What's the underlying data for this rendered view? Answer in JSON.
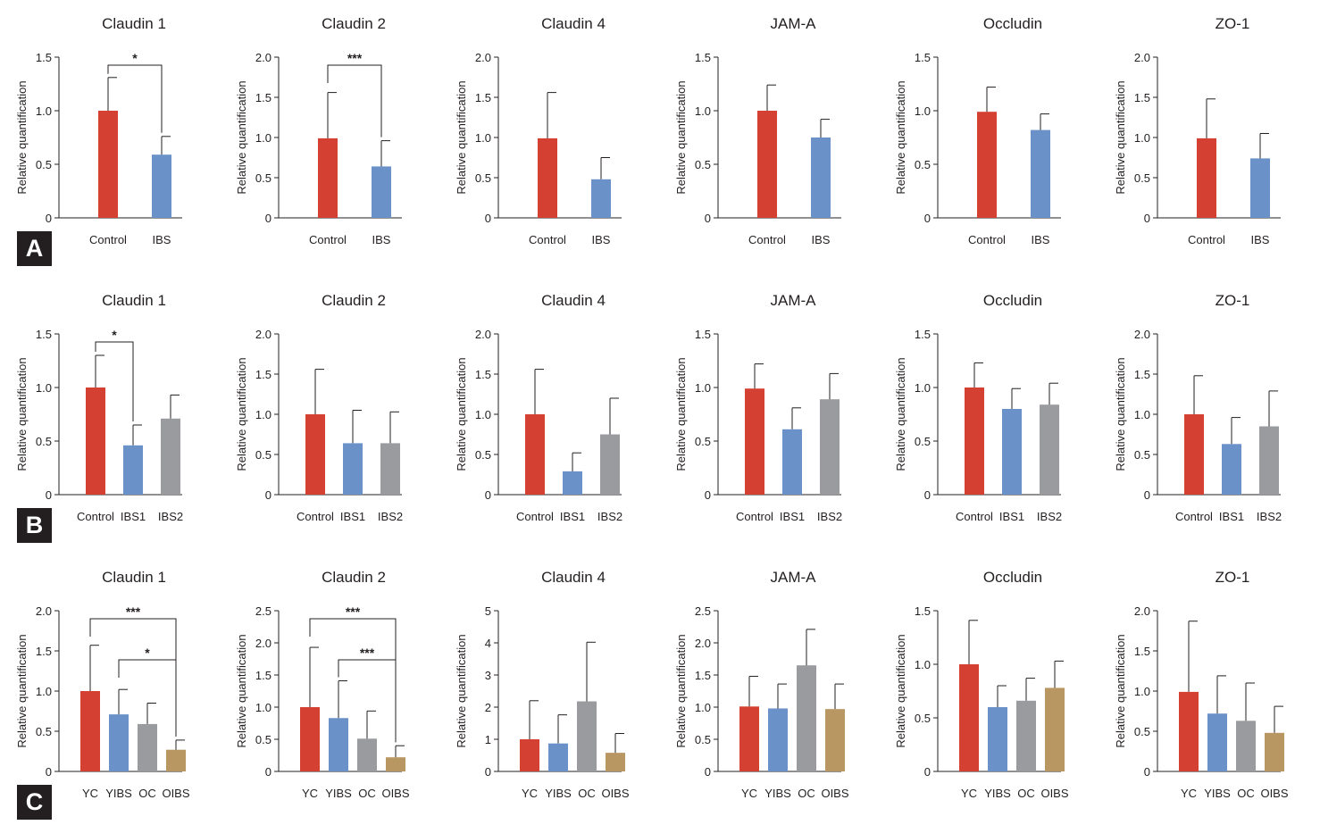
{
  "colors": {
    "red": "#d44031",
    "blue": "#6a92c8",
    "gray": "#9a9b9f",
    "tan": "#b99763",
    "axis": "#231f20"
  },
  "y_axis_label": "Relative quantification",
  "panel_labels": [
    "A",
    "B",
    "C"
  ],
  "chart_data": [
    {
      "type": "bar",
      "row": 0,
      "col": 0,
      "title": "Claudin 1",
      "categories": [
        "Control",
        "IBS"
      ],
      "values": [
        1.0,
        0.59
      ],
      "errors": [
        0.31,
        0.17
      ],
      "ylim": [
        0,
        1.5
      ],
      "yticks": [
        "0",
        "0.5",
        "1.0",
        "1.5"
      ],
      "significance": [
        {
          "from": 0,
          "to": 1,
          "label": "*"
        }
      ]
    },
    {
      "type": "bar",
      "row": 0,
      "col": 1,
      "title": "Claudin 2",
      "categories": [
        "Control",
        "IBS"
      ],
      "values": [
        0.99,
        0.64
      ],
      "errors": [
        0.57,
        0.32
      ],
      "ylim": [
        0,
        2.0
      ],
      "yticks": [
        "0",
        "0.5",
        "1.0",
        "1.5",
        "2.0"
      ],
      "significance": [
        {
          "from": 0,
          "to": 1,
          "label": "***"
        }
      ]
    },
    {
      "type": "bar",
      "row": 0,
      "col": 2,
      "title": "Claudin 4",
      "categories": [
        "Control",
        "IBS"
      ],
      "values": [
        0.99,
        0.48
      ],
      "errors": [
        0.57,
        0.27
      ],
      "ylim": [
        0,
        2.0
      ],
      "yticks": [
        "0",
        "0.5",
        "1.0",
        "1.5",
        "2.0"
      ],
      "significance": []
    },
    {
      "type": "bar",
      "row": 0,
      "col": 3,
      "title": "JAM-A",
      "categories": [
        "Control",
        "IBS"
      ],
      "values": [
        1.0,
        0.75
      ],
      "errors": [
        0.24,
        0.17
      ],
      "ylim": [
        0,
        1.5
      ],
      "yticks": [
        "0",
        "0.5",
        "1.0",
        "1.5"
      ],
      "significance": []
    },
    {
      "type": "bar",
      "row": 0,
      "col": 4,
      "title": "Occludin",
      "categories": [
        "Control",
        "IBS"
      ],
      "values": [
        0.99,
        0.82
      ],
      "errors": [
        0.23,
        0.15
      ],
      "ylim": [
        0,
        1.5
      ],
      "yticks": [
        "0",
        "0.5",
        "1.0",
        "1.5"
      ],
      "significance": []
    },
    {
      "type": "bar",
      "row": 0,
      "col": 5,
      "title": "ZO-1",
      "categories": [
        "Control",
        "IBS"
      ],
      "values": [
        0.99,
        0.74
      ],
      "errors": [
        0.49,
        0.31
      ],
      "ylim": [
        0,
        2.0
      ],
      "yticks": [
        "0",
        "0.5",
        "1.0",
        "1.5",
        "2.0"
      ],
      "significance": []
    },
    {
      "type": "bar",
      "row": 1,
      "col": 0,
      "title": "Claudin 1",
      "categories": [
        "Control",
        "IBS1",
        "IBS2"
      ],
      "values": [
        1.0,
        0.46,
        0.71
      ],
      "errors": [
        0.3,
        0.19,
        0.22
      ],
      "ylim": [
        0,
        1.5
      ],
      "yticks": [
        "0",
        "0.5",
        "1.0",
        "1.5"
      ],
      "significance": [
        {
          "from": 0,
          "to": 1,
          "label": "*"
        }
      ]
    },
    {
      "type": "bar",
      "row": 1,
      "col": 1,
      "title": "Claudin 2",
      "categories": [
        "Control",
        "IBS1",
        "IBS2"
      ],
      "values": [
        1.0,
        0.64,
        0.64
      ],
      "errors": [
        0.56,
        0.41,
        0.39
      ],
      "ylim": [
        0,
        2.0
      ],
      "yticks": [
        "0",
        "0.5",
        "1.0",
        "1.5",
        "2.0"
      ],
      "significance": []
    },
    {
      "type": "bar",
      "row": 1,
      "col": 2,
      "title": "Claudin 4",
      "categories": [
        "Control",
        "IBS1",
        "IBS2"
      ],
      "values": [
        1.0,
        0.29,
        0.75
      ],
      "errors": [
        0.56,
        0.23,
        0.45
      ],
      "ylim": [
        0,
        2.0
      ],
      "yticks": [
        "0",
        "0.5",
        "1.0",
        "1.5",
        "2.0"
      ],
      "significance": []
    },
    {
      "type": "bar",
      "row": 1,
      "col": 3,
      "title": "JAM-A",
      "categories": [
        "Control",
        "IBS1",
        "IBS2"
      ],
      "values": [
        0.99,
        0.61,
        0.89
      ],
      "errors": [
        0.23,
        0.2,
        0.24
      ],
      "ylim": [
        0,
        1.5
      ],
      "yticks": [
        "0",
        "0.5",
        "1.0",
        "1.5"
      ],
      "significance": []
    },
    {
      "type": "bar",
      "row": 1,
      "col": 4,
      "title": "Occludin",
      "categories": [
        "Control",
        "IBS1",
        "IBS2"
      ],
      "values": [
        1.0,
        0.8,
        0.84
      ],
      "errors": [
        0.23,
        0.19,
        0.2
      ],
      "ylim": [
        0,
        1.5
      ],
      "yticks": [
        "0",
        "0.5",
        "1.0",
        "1.5"
      ],
      "significance": []
    },
    {
      "type": "bar",
      "row": 1,
      "col": 5,
      "title": "ZO-1",
      "categories": [
        "Control",
        "IBS1",
        "IBS2"
      ],
      "values": [
        1.0,
        0.63,
        0.85
      ],
      "errors": [
        0.48,
        0.33,
        0.44
      ],
      "ylim": [
        0,
        2.0
      ],
      "yticks": [
        "0",
        "0.5",
        "1.0",
        "1.5",
        "2.0"
      ],
      "significance": []
    },
    {
      "type": "bar",
      "row": 2,
      "col": 0,
      "title": "Claudin 1",
      "categories": [
        "YC",
        "YIBS",
        "OC",
        "OIBS"
      ],
      "values": [
        1.0,
        0.71,
        0.59,
        0.27
      ],
      "errors": [
        0.57,
        0.31,
        0.26,
        0.12
      ],
      "ylim": [
        0,
        2.0
      ],
      "yticks": [
        "0",
        "0.5",
        "1.0",
        "1.5",
        "2.0"
      ],
      "significance": [
        {
          "from": 0,
          "to": 3,
          "label": "***"
        },
        {
          "from": 1,
          "to": 3,
          "label": "*"
        }
      ]
    },
    {
      "type": "bar",
      "row": 2,
      "col": 1,
      "title": "Claudin 2",
      "categories": [
        "YC",
        "YIBS",
        "OC",
        "OIBS"
      ],
      "values": [
        1.0,
        0.83,
        0.51,
        0.22
      ],
      "errors": [
        0.93,
        0.58,
        0.43,
        0.18
      ],
      "ylim": [
        0,
        2.5
      ],
      "yticks": [
        "0",
        "0.5",
        "1.0",
        "1.5",
        "2.0",
        "2.5"
      ],
      "significance": [
        {
          "from": 0,
          "to": 3,
          "label": "***"
        },
        {
          "from": 1,
          "to": 3,
          "label": "***"
        }
      ]
    },
    {
      "type": "bar",
      "row": 2,
      "col": 2,
      "title": "Claudin 4",
      "categories": [
        "YC",
        "YIBS",
        "OC",
        "OIBS"
      ],
      "values": [
        1.0,
        0.87,
        2.18,
        0.58
      ],
      "errors": [
        1.2,
        0.89,
        1.84,
        0.6
      ],
      "ylim": [
        0,
        5
      ],
      "yticks": [
        "0",
        "1",
        "2",
        "3",
        "4",
        "5"
      ],
      "significance": []
    },
    {
      "type": "bar",
      "row": 2,
      "col": 3,
      "title": "JAM-A",
      "categories": [
        "YC",
        "YIBS",
        "OC",
        "OIBS"
      ],
      "values": [
        1.01,
        0.98,
        1.65,
        0.97
      ],
      "errors": [
        0.47,
        0.38,
        0.56,
        0.39
      ],
      "ylim": [
        0,
        2.5
      ],
      "yticks": [
        "0",
        "0.5",
        "1.0",
        "1.5",
        "2.0",
        "2.5"
      ],
      "significance": []
    },
    {
      "type": "bar",
      "row": 2,
      "col": 4,
      "title": "Occludin",
      "categories": [
        "YC",
        "YIBS",
        "OC",
        "OIBS"
      ],
      "values": [
        1.0,
        0.6,
        0.66,
        0.78
      ],
      "errors": [
        0.41,
        0.2,
        0.21,
        0.25
      ],
      "ylim": [
        0,
        1.5
      ],
      "yticks": [
        "0",
        "0.5",
        "1.0",
        "1.5"
      ],
      "significance": []
    },
    {
      "type": "bar",
      "row": 2,
      "col": 5,
      "title": "ZO-1",
      "categories": [
        "YC",
        "YIBS",
        "OC",
        "OIBS"
      ],
      "values": [
        0.99,
        0.72,
        0.63,
        0.48
      ],
      "errors": [
        0.88,
        0.47,
        0.47,
        0.33
      ],
      "ylim": [
        0,
        2.0
      ],
      "yticks": [
        "0",
        "0.5",
        "1.0",
        "1.5",
        "2.0"
      ],
      "significance": []
    }
  ]
}
